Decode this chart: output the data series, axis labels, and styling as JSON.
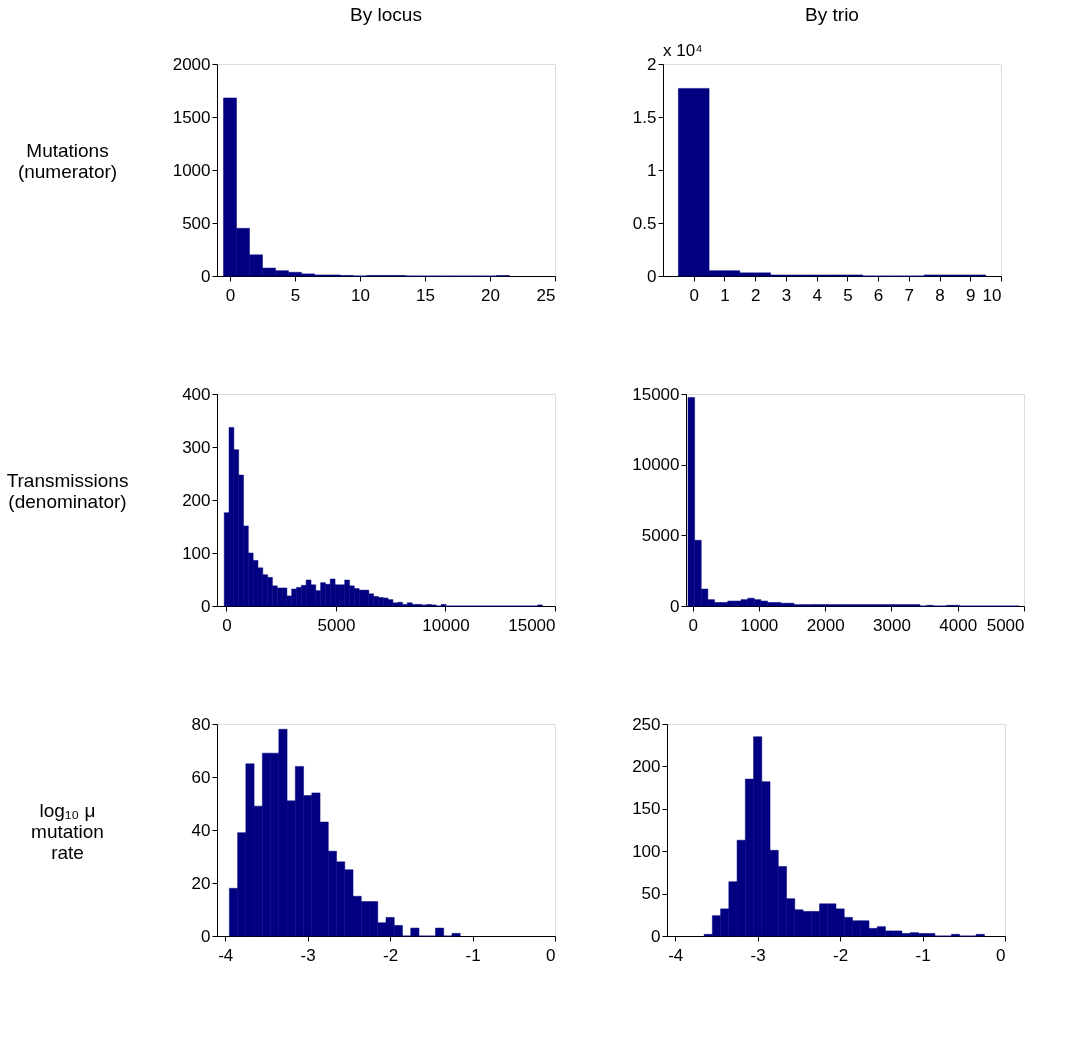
{
  "chart_data": [
    {
      "type": "histogram",
      "title": "By locus",
      "ylabel": "Mutations\n(numerator)",
      "color": "#000080",
      "bins": [
        -0.5,
        0.5,
        1.5,
        2.5,
        3.5,
        4.5,
        5.5,
        6.5,
        7.5,
        8.5,
        9.5,
        10.5,
        11.5,
        12.5,
        13.5,
        14.5,
        15.5,
        16.5,
        17.5,
        18.5,
        19.5,
        20.5,
        21.5
      ],
      "values": [
        1680,
        450,
        200,
        75,
        50,
        35,
        20,
        10,
        10,
        5,
        0,
        5,
        5,
        5,
        0,
        0,
        0,
        0,
        0,
        0,
        0,
        5
      ],
      "xlim": [
        -1,
        25
      ],
      "xticks": [
        0,
        5,
        10,
        15,
        20,
        25
      ],
      "ylim": [
        0,
        2000
      ],
      "yticks": [
        0,
        500,
        1000,
        1500,
        2000
      ]
    },
    {
      "type": "histogram",
      "title": "By trio",
      "annotations": [
        "x 10⁴"
      ],
      "color": "#000080",
      "bins": [
        -0.5,
        0.5,
        1.5,
        2.5,
        3.5,
        4.5,
        5.5,
        6.5,
        7.5,
        8.5,
        9.5
      ],
      "values": [
        1.77,
        0.05,
        0.03,
        0.01,
        0.01,
        0.01,
        0,
        0,
        0.01,
        0.01
      ],
      "xlim": [
        -1,
        10
      ],
      "xticks": [
        0,
        1,
        2,
        3,
        4,
        5,
        6,
        7,
        8,
        9,
        10
      ],
      "ylim": [
        0,
        2
      ],
      "yticks": [
        0,
        0.5,
        1,
        1.5,
        2
      ]
    },
    {
      "type": "histogram",
      "ylabel": "Transmissions\n(denominator)",
      "color": "#000080",
      "bins": [
        -100,
        120,
        340,
        560,
        780,
        1000,
        1220,
        1440,
        1660,
        1880,
        2100,
        2320,
        2540,
        2760,
        2980,
        3200,
        3420,
        3640,
        3860,
        4080,
        4300,
        4520,
        4740,
        4960,
        5180,
        5400,
        5620,
        5840,
        6060,
        6280,
        6500,
        6720,
        6940,
        7160,
        7380,
        7600,
        7820,
        8040,
        8260,
        8480,
        8700,
        8920,
        9140,
        9360,
        9580,
        9800,
        10020,
        10240,
        10460,
        10680,
        10900,
        11120,
        11340,
        11560,
        11780,
        12000,
        12220,
        12440,
        12660,
        12880,
        13100,
        13320,
        13540,
        13760,
        13980,
        14200,
        14420
      ],
      "values": [
        176,
        337,
        295,
        247,
        151,
        100,
        86,
        72,
        59,
        54,
        38,
        34,
        34,
        19,
        32,
        35,
        39,
        49,
        40,
        29,
        44,
        41,
        51,
        40,
        40,
        49,
        38,
        33,
        30,
        30,
        23,
        18,
        16,
        15,
        12,
        6,
        7,
        3,
        6,
        3,
        3,
        2,
        3,
        2,
        0,
        3,
        0,
        0,
        0,
        0,
        0,
        0,
        0,
        0,
        0,
        0,
        0,
        0,
        0,
        0,
        0,
        0,
        0,
        0,
        0,
        2
      ],
      "xlim": [
        -430,
        15000
      ],
      "xticks": [
        0,
        5000,
        10000,
        15000
      ],
      "ylim": [
        0,
        400
      ],
      "yticks": [
        0,
        100,
        200,
        300,
        400
      ]
    },
    {
      "type": "histogram",
      "color": "#000080",
      "bins": [
        -70,
        30,
        130,
        230,
        330,
        430,
        530,
        630,
        730,
        830,
        930,
        1030,
        1130,
        1230,
        1330,
        1430,
        1530,
        1630,
        1730,
        1830,
        1930,
        2030,
        2130,
        2230,
        2330,
        2430,
        2530,
        2630,
        2730,
        2830,
        2930,
        3030,
        3130,
        3230,
        3330,
        3430,
        3530,
        3630,
        3730,
        3830,
        3930,
        4030,
        4130,
        4230,
        4330,
        4430,
        4530,
        4630,
        4730,
        4830,
        4930
      ],
      "values": [
        14750,
        4650,
        1200,
        450,
        250,
        250,
        350,
        350,
        450,
        550,
        450,
        350,
        250,
        250,
        200,
        200,
        100,
        100,
        100,
        100,
        100,
        100,
        100,
        100,
        100,
        100,
        100,
        100,
        100,
        100,
        100,
        100,
        100,
        100,
        100,
        0,
        50,
        0,
        0,
        50,
        50,
        0,
        0,
        0,
        0,
        0,
        0,
        0,
        0,
        0
      ],
      "xlim": [
        -100,
        5000
      ],
      "xticks": [
        0,
        1000,
        2000,
        3000,
        4000,
        5000
      ],
      "ylim": [
        0,
        15000
      ],
      "yticks": [
        0,
        5000,
        10000,
        15000
      ]
    },
    {
      "type": "histogram",
      "ylabel": "log₁₀ μ\nmutation\nrate",
      "color": "#000080",
      "bins": [
        -3.95,
        -3.85,
        -3.75,
        -3.65,
        -3.55,
        -3.45,
        -3.35,
        -3.25,
        -3.15,
        -3.05,
        -2.95,
        -2.85,
        -2.75,
        -2.65,
        -2.55,
        -2.45,
        -2.35,
        -2.25,
        -2.15,
        -2.05,
        -1.95,
        -1.85,
        -1.75,
        -1.65,
        -1.55,
        -1.45,
        -1.35,
        -1.25,
        -1.15
      ],
      "values": [
        18,
        39,
        65,
        49,
        69,
        69,
        78,
        51,
        64,
        53,
        54,
        43,
        32,
        28,
        25,
        15,
        13,
        13,
        5,
        7,
        4,
        0,
        3,
        0,
        0,
        3,
        0,
        1
      ],
      "xlim": [
        -4.1,
        0
      ],
      "xticks": [
        -4,
        -3,
        -2,
        -1,
        0
      ],
      "ylim": [
        0,
        80
      ],
      "yticks": [
        0,
        20,
        40,
        60,
        80
      ]
    },
    {
      "type": "histogram",
      "color": "#000080",
      "bins": [
        -3.65,
        -3.55,
        -3.45,
        -3.35,
        -3.25,
        -3.15,
        -3.05,
        -2.95,
        -2.85,
        -2.75,
        -2.65,
        -2.55,
        -2.45,
        -2.35,
        -2.25,
        -2.15,
        -2.05,
        -1.95,
        -1.85,
        -1.75,
        -1.65,
        -1.55,
        -1.45,
        -1.35,
        -1.25,
        -1.15,
        -1.05,
        -0.95,
        -0.85,
        -0.75,
        -0.65,
        -0.55,
        -0.45,
        -0.35,
        -0.25
      ],
      "values": [
        2,
        24,
        32,
        64,
        113,
        185,
        235,
        182,
        101,
        82,
        44,
        31,
        29,
        29,
        38,
        38,
        32,
        22,
        18,
        18,
        9,
        11,
        6,
        6,
        3,
        4,
        3,
        3,
        0,
        0,
        2,
        0,
        0,
        2
      ],
      "xlim": [
        -4.1,
        0
      ],
      "xticks": [
        -4,
        -3,
        -2,
        -1,
        0
      ],
      "ylim": [
        0,
        250
      ],
      "yticks": [
        0,
        50,
        100,
        150,
        200,
        250
      ]
    }
  ]
}
